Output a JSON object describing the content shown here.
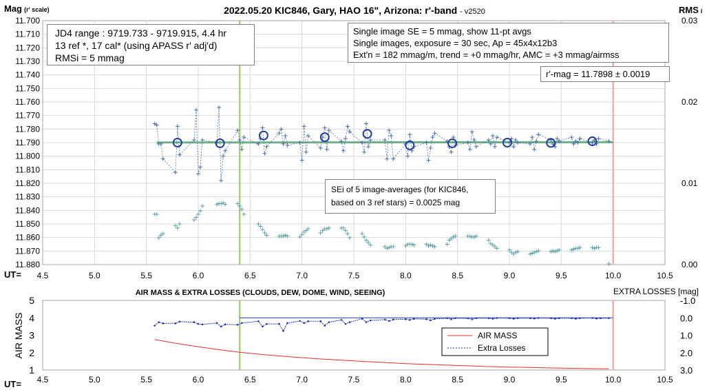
{
  "chart_data": [
    {
      "type": "scatter",
      "title": "2022.05.20 KIC846, Gary, HAO 16\", Arizona: r'-band",
      "title_suffix": "- v2520",
      "ylabel": "Mag",
      "ylabel_note": "(r' scale)",
      "y2label": "RMS",
      "y2label_note": "i",
      "xlabel": "UT=",
      "xlim": [
        4.5,
        10.5
      ],
      "ylim": [
        11.88,
        11.7
      ],
      "y2lim": [
        0,
        0.03
      ],
      "x_ticks": [
        "4.5",
        "5.0",
        "5.5",
        "6.0",
        "6.5",
        "7.0",
        "7.5",
        "8.0",
        "8.5",
        "9.0",
        "9.5",
        "10.0",
        "10.5"
      ],
      "y_ticks": [
        "11.700",
        "11.710",
        "11.720",
        "11.730",
        "11.740",
        "11.750",
        "11.760",
        "11.770",
        "11.780",
        "11.790",
        "11.800",
        "11.810",
        "11.820",
        "11.830",
        "11.840",
        "11.850",
        "11.860",
        "11.870",
        "11.880"
      ],
      "y2_ticks": [
        "0.03",
        "0.02",
        "0.01",
        "0.00"
      ],
      "grid": true,
      "vlines": [
        {
          "x": 6.4,
          "color": "#92d050"
        },
        {
          "x": 10.0,
          "color": "#ff9999"
        }
      ],
      "fit_line": {
        "x": [
          5.6,
          10.0
        ],
        "y": [
          11.7899,
          11.7897
        ],
        "color": "#5ba37a"
      },
      "series": [
        {
          "marker": "plus",
          "color": "#4a6fa8",
          "x": [
            5.58,
            5.6,
            5.62,
            5.64,
            5.66,
            5.78,
            5.8,
            5.82,
            5.96,
            5.98,
            6.0,
            6.02,
            6.04,
            6.18,
            6.2,
            6.22,
            6.24,
            6.26,
            6.38,
            6.4,
            6.42,
            6.44,
            6.58,
            6.6,
            6.62,
            6.64,
            6.66,
            6.78,
            6.8,
            6.82,
            6.84,
            6.86,
            6.98,
            7.0,
            7.02,
            7.04,
            7.06,
            7.18,
            7.2,
            7.22,
            7.24,
            7.26,
            7.38,
            7.4,
            7.42,
            7.44,
            7.46,
            7.58,
            7.6,
            7.62,
            7.64,
            7.66,
            7.8,
            7.82,
            7.84,
            7.86,
            7.88,
            8.0,
            8.02,
            8.04,
            8.06,
            8.08,
            8.2,
            8.22,
            8.24,
            8.26,
            8.28,
            8.4,
            8.42,
            8.44,
            8.46,
            8.48,
            8.6,
            8.62,
            8.64,
            8.66,
            8.68,
            8.8,
            8.82,
            8.84,
            8.86,
            8.88,
            9.0,
            9.02,
            9.04,
            9.06,
            9.08,
            9.2,
            9.22,
            9.24,
            9.26,
            9.28,
            9.4,
            9.42,
            9.44,
            9.46,
            9.48,
            9.6,
            9.62,
            9.64,
            9.66,
            9.68,
            9.8,
            9.82,
            9.84,
            9.86,
            9.96
          ],
          "y": [
            11.776,
            11.777,
            11.791,
            11.791,
            11.802,
            11.812,
            11.778,
            11.799,
            11.788,
            11.766,
            11.813,
            11.808,
            11.788,
            11.79,
            11.764,
            11.818,
            11.8,
            11.796,
            11.781,
            11.788,
            11.795,
            11.786,
            11.791,
            11.787,
            11.779,
            11.798,
            11.793,
            11.783,
            11.78,
            11.791,
            11.785,
            11.792,
            11.79,
            11.803,
            11.778,
            11.797,
            11.785,
            11.794,
            11.786,
            11.779,
            11.795,
            11.781,
            11.789,
            11.796,
            11.787,
            11.778,
            11.782,
            11.79,
            11.797,
            11.776,
            11.793,
            11.788,
            11.788,
            11.802,
            11.781,
            11.785,
            11.802,
            11.791,
            11.8,
            11.784,
            11.796,
            11.793,
            11.79,
            11.803,
            11.794,
            11.786,
            11.783,
            11.789,
            11.793,
            11.797,
            11.786,
            11.792,
            11.79,
            11.795,
            11.782,
            11.788,
            11.793,
            11.788,
            11.791,
            11.785,
            11.793,
            11.786,
            11.79,
            11.787,
            11.793,
            11.788,
            11.79,
            11.791,
            11.786,
            11.795,
            11.789,
            11.784,
            11.788,
            11.791,
            11.793,
            11.787,
            11.789,
            11.786,
            11.791,
            11.789,
            11.79,
            11.787,
            11.79,
            11.788,
            11.791,
            11.787,
            11.789
          ]
        },
        {
          "marker": "circle",
          "color": "#1f3fa0",
          "x": [
            5.8,
            6.21,
            6.63,
            7.22,
            7.63,
            8.04,
            8.45,
            8.98,
            9.4,
            9.8
          ],
          "y": [
            11.79,
            11.7905,
            11.7847,
            11.786,
            11.7835,
            11.792,
            11.7905,
            11.79,
            11.7902,
            11.789
          ]
        },
        {
          "marker": "plus",
          "color": "#5ba3a8",
          "axis": "right",
          "x": [
            5.58,
            5.6,
            5.62,
            5.64,
            5.66,
            5.78,
            5.8,
            5.82,
            5.96,
            5.98,
            6.0,
            6.02,
            6.04,
            6.18,
            6.2,
            6.22,
            6.24,
            6.26,
            6.38,
            6.4,
            6.42,
            6.44,
            6.58,
            6.6,
            6.62,
            6.64,
            6.66,
            6.78,
            6.8,
            6.82,
            6.84,
            6.86,
            6.98,
            7.0,
            7.02,
            7.04,
            7.06,
            7.18,
            7.2,
            7.22,
            7.24,
            7.26,
            7.38,
            7.4,
            7.42,
            7.44,
            7.46,
            7.58,
            7.6,
            7.62,
            7.64,
            7.66,
            7.8,
            7.82,
            7.84,
            7.86,
            7.88,
            8.0,
            8.02,
            8.04,
            8.06,
            8.08,
            8.2,
            8.22,
            8.24,
            8.26,
            8.28,
            8.4,
            8.42,
            8.44,
            8.46,
            8.48,
            8.6,
            8.62,
            8.64,
            8.66,
            8.68,
            8.8,
            8.82,
            8.84,
            8.86,
            8.88,
            9.0,
            9.02,
            9.04,
            9.06,
            9.08,
            9.2,
            9.22,
            9.24,
            9.26,
            9.28,
            9.4,
            9.42,
            9.44,
            9.46,
            9.48,
            9.6,
            9.62,
            9.64,
            9.66,
            9.68,
            9.8,
            9.82,
            9.84,
            9.86,
            9.96
          ],
          "y": [
            0.0062,
            0.0062,
            0.0033,
            0.0036,
            0.0038,
            0.0048,
            0.0045,
            0.005,
            0.0055,
            0.0058,
            0.0062,
            0.0066,
            0.0072,
            0.0074,
            0.0075,
            0.0075,
            0.0076,
            0.0074,
            0.0075,
            0.0072,
            0.0068,
            0.0062,
            0.005,
            0.0047,
            0.0043,
            0.0039,
            0.0036,
            0.0035,
            0.0035,
            0.0035,
            0.0036,
            0.0035,
            0.0034,
            0.0037,
            0.004,
            0.0042,
            0.0044,
            0.0039,
            0.0042,
            0.0044,
            0.0044,
            0.0045,
            0.0045,
            0.0045,
            0.0042,
            0.0038,
            0.0033,
            0.0038,
            0.0034,
            0.003,
            0.0027,
            0.0024,
            0.0022,
            0.002,
            0.0021,
            0.0022,
            0.0022,
            0.0023,
            0.0025,
            0.0025,
            0.0025,
            0.0024,
            0.0025,
            0.0023,
            0.0024,
            0.0023,
            0.0022,
            0.0025,
            0.003,
            0.0032,
            0.0034,
            0.0035,
            0.0035,
            0.0035,
            0.0034,
            0.0034,
            0.0035,
            0.003,
            0.0026,
            0.0024,
            0.0022,
            0.002,
            0.0018,
            0.0015,
            0.0013,
            0.0015,
            0.0016,
            0.0013,
            0.0014,
            0.0015,
            0.0016,
            0.0017,
            0.0016,
            0.0017,
            0.0016,
            0.0017,
            0.0018,
            0.0018,
            0.0019,
            0.002,
            0.002,
            0.0021,
            0.0021,
            0.002,
            0.0021,
            0.0021,
            0.0001
          ]
        }
      ],
      "annotations": {
        "jd_box": [
          "JD4 range : 9719.733 - 9719.915,  4.4  hr",
          "13 ref *, 17 cal* (using APASS r' adj'd)",
          "RMSi = 5 mmag"
        ],
        "info_box": [
          "Single image SE = 5 mmag, show  11-pt avgs",
          "Single images, exposure = 30 sec, Ap = 45x4x12b3",
          "Ext'n = 182 mmag/m, trend = +0  mmag/hr, AMC = +3 mmag/airmss"
        ],
        "mag_box": "r'-mag = 11.7898 ± 0.0019",
        "sei_box": [
          "SEi of 5 image-averages (for KIC846,",
          "based on 3 ref stars) = 0.0025 mag"
        ]
      }
    },
    {
      "type": "line",
      "title": "AIR MASS & EXTRA LOSSES (CLOUDS, DEW, DOME, WIND, SEEING)",
      "ylabel": "AIR MASS",
      "y2label": "EXTRA LOSSES [mag]",
      "xlabel": "UT=",
      "xlim": [
        4.5,
        10.5
      ],
      "ylim": [
        1,
        5
      ],
      "y2lim": [
        3.0,
        -1.0
      ],
      "x_ticks": [
        "4.5",
        "5.0",
        "5.5",
        "6.0",
        "6.5",
        "7.0",
        "7.5",
        "8.0",
        "8.5",
        "9.0",
        "9.5",
        "10.0",
        "10.5"
      ],
      "y_ticks": [
        "5",
        "4",
        "3",
        "2",
        "1"
      ],
      "y2_ticks": [
        "-1.0",
        "0.0",
        "1.0",
        "2.0",
        "3.0"
      ],
      "vlines": [
        {
          "x": 6.4,
          "color": "#92d050"
        },
        {
          "x": 10.0,
          "color": "#ff9999"
        }
      ],
      "reference_line": {
        "x": [
          6.4,
          10.0
        ],
        "y2": [
          0.0,
          0.0
        ],
        "color": "#1f3fa0"
      },
      "series": [
        {
          "name": "AIR MASS",
          "color": "#e03030",
          "x": [
            5.58,
            5.8,
            6.0,
            6.2,
            6.4,
            6.6,
            6.8,
            7.0,
            7.2,
            7.4,
            7.6,
            7.8,
            8.0,
            8.2,
            8.4,
            8.6,
            8.8,
            9.0,
            9.2,
            9.4,
            9.6,
            9.8,
            9.96
          ],
          "y": [
            2.75,
            2.52,
            2.34,
            2.17,
            2.02,
            1.9,
            1.8,
            1.71,
            1.63,
            1.56,
            1.49,
            1.43,
            1.37,
            1.33,
            1.28,
            1.24,
            1.2,
            1.17,
            1.15,
            1.12,
            1.1,
            1.08,
            1.07
          ]
        },
        {
          "name": "Extra Losses",
          "color": "#2030b0",
          "axis": "right",
          "x": [
            5.58,
            5.62,
            5.66,
            5.78,
            5.82,
            5.96,
            6.0,
            6.04,
            6.18,
            6.22,
            6.26,
            6.38,
            6.42,
            6.58,
            6.62,
            6.66,
            6.78,
            6.82,
            6.86,
            6.98,
            7.02,
            7.06,
            7.18,
            7.22,
            7.26,
            7.38,
            7.42,
            7.46,
            7.58,
            7.62,
            7.66,
            7.8,
            7.84,
            7.88,
            8.0,
            8.04,
            8.08,
            8.2,
            8.24,
            8.28,
            8.4,
            8.44,
            8.48,
            8.6,
            8.64,
            8.68,
            8.8,
            8.84,
            8.88,
            9.0,
            9.04,
            9.08,
            9.2,
            9.24,
            9.28,
            9.4,
            9.44,
            9.48,
            9.6,
            9.64,
            9.68,
            9.8,
            9.84,
            9.88,
            9.96
          ],
          "y": [
            0.45,
            0.25,
            0.32,
            0.32,
            0.22,
            0.25,
            0.35,
            0.38,
            0.3,
            0.5,
            0.38,
            0.4,
            0.3,
            0.2,
            0.5,
            0.35,
            0.35,
            0.75,
            0.3,
            0.18,
            0.3,
            0.2,
            0.2,
            0.45,
            0.25,
            0.12,
            0.35,
            0.25,
            0.05,
            0.25,
            0.15,
            0.1,
            0.18,
            0.1,
            0.08,
            0.12,
            0.06,
            0.08,
            0.14,
            0.06,
            0.02,
            0.08,
            0.02,
            0.03,
            0.08,
            0.02,
            0.02,
            0.05,
            0.01,
            0.02,
            0.05,
            0.02,
            0.02,
            0.04,
            0.01,
            0.02,
            0.05,
            0.02,
            0.02,
            0.05,
            0.02,
            0.01,
            0.04,
            0.02,
            0.02
          ]
        }
      ],
      "legend": {
        "position": "right",
        "entries": [
          "AIR MASS",
          "Extra Losses"
        ]
      }
    }
  ]
}
